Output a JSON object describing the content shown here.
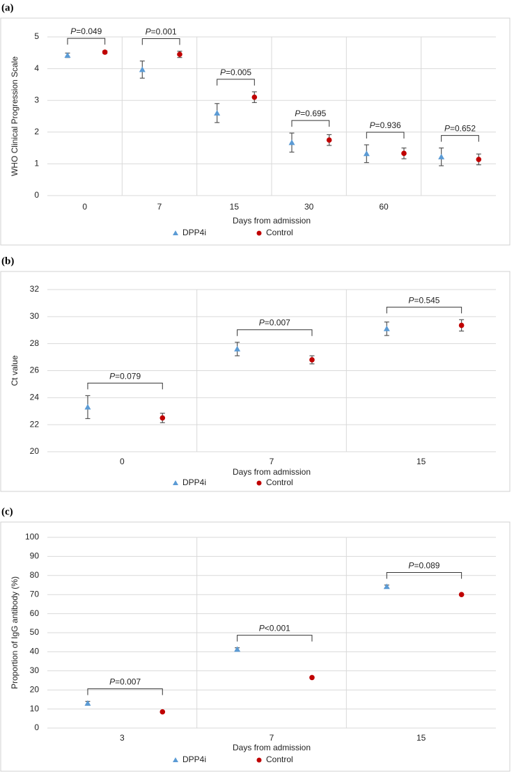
{
  "chart_data": [
    {
      "type": "errorbar",
      "panel_label": "(a)",
      "y_label": "WHO Clinical Progression Scale",
      "x_label": "Days from admission",
      "categories": [
        "0",
        "7",
        "15",
        "30",
        "60",
        null
      ],
      "series": [
        {
          "name": "DPP4i",
          "color": "#5b9bd5",
          "marker": "triangle",
          "values": [
            4.42,
            3.97,
            2.6,
            1.67,
            1.32,
            1.22
          ],
          "errors": [
            0.07,
            0.27,
            0.3,
            0.3,
            0.28,
            0.28
          ]
        },
        {
          "name": "Control",
          "color": "#c00000",
          "marker": "circle",
          "values": [
            4.52,
            4.45,
            3.1,
            1.75,
            1.33,
            1.14
          ],
          "errors": [
            0.04,
            0.1,
            0.17,
            0.17,
            0.17,
            0.17
          ]
        }
      ],
      "annotations": [
        "P=0.049",
        "P=0.001",
        "P=0.005",
        "P=0.695",
        "P=0.936",
        "P=0.652"
      ],
      "ylim": [
        0,
        5
      ],
      "yticks": [
        0,
        1,
        2,
        3,
        4,
        5
      ],
      "grid": true
    },
    {
      "type": "errorbar",
      "panel_label": "(b)",
      "y_label": "Ct value",
      "x_label": "Days from admission",
      "categories": [
        "0",
        "7",
        "15"
      ],
      "series": [
        {
          "name": "DPP4i",
          "color": "#5b9bd5",
          "marker": "triangle",
          "values": [
            23.3,
            27.6,
            29.1
          ],
          "errors": [
            0.85,
            0.5,
            0.5
          ]
        },
        {
          "name": "Control",
          "color": "#c00000",
          "marker": "circle",
          "values": [
            22.5,
            26.8,
            29.35
          ],
          "errors": [
            0.35,
            0.3,
            0.42
          ]
        }
      ],
      "annotations": [
        "P=0.079",
        "P=0.007",
        "P=0.545"
      ],
      "ylim": [
        20,
        32
      ],
      "yticks": [
        20,
        22,
        24,
        26,
        28,
        30,
        32
      ],
      "grid": true
    },
    {
      "type": "errorbar",
      "panel_label": "(c)",
      "y_label": "Proportion of IgG antibody (%)",
      "x_label": "Days from admission",
      "categories": [
        "3",
        "7",
        "15"
      ],
      "series": [
        {
          "name": "DPP4i",
          "color": "#5b9bd5",
          "marker": "triangle",
          "values": [
            13,
            41.3,
            74.2
          ],
          "errors": [
            1,
            0.8,
            0.8
          ]
        },
        {
          "name": "Control",
          "color": "#c00000",
          "marker": "circle",
          "values": [
            8.5,
            26.5,
            70
          ],
          "errors": [
            0.4,
            0.4,
            0.3
          ]
        }
      ],
      "annotations": [
        "P=0.007",
        "P<0.001",
        "P=0.089"
      ],
      "ylim": [
        0,
        100
      ],
      "yticks": [
        0,
        10,
        20,
        30,
        40,
        50,
        60,
        70,
        80,
        90,
        100
      ],
      "grid": true
    }
  ]
}
